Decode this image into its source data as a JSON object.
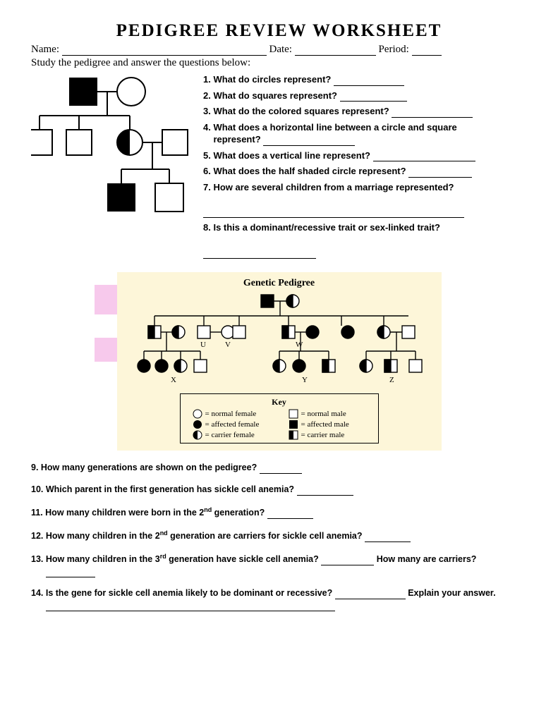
{
  "title": "PEDIGREE REVIEW WORKSHEET",
  "header": {
    "name": "Name:",
    "date": "Date:",
    "period": "Period:"
  },
  "instruction": "Study the pedigree and answer the questions below:",
  "questions1": [
    {
      "n": "1.",
      "t": "What do circles represent?",
      "bw": 100
    },
    {
      "n": "2.",
      "t": "What do squares represent?",
      "bw": 95
    },
    {
      "n": "3.",
      "t": "What do the colored squares represent?",
      "bw": 115
    },
    {
      "n": "4.",
      "t": "What does a horizontal line between a circle and square represent?",
      "bw": 130,
      "multi": true
    },
    {
      "n": "5.",
      "t": "What does a vertical line represent?",
      "bw": 145
    },
    {
      "n": "6.",
      "t": "What does the half shaded circle represent?",
      "bw": 90
    },
    {
      "n": "7.",
      "t": "How are several children from a marriage represented?",
      "bw": 370,
      "below": true
    },
    {
      "n": "8.",
      "t": "Is this a dominant/recessive trait or sex-linked trait?",
      "bw": 160,
      "below": true
    }
  ],
  "geneticTitle": "Genetic Pedigree",
  "labels": {
    "U": "U",
    "V": "V",
    "W": "W",
    "X": "X",
    "Y": "Y",
    "Z": "Z"
  },
  "keyTitle": "Key",
  "key": [
    {
      "sym": "circ-empty",
      "t": "= normal female"
    },
    {
      "sym": "sq-empty",
      "t": "= normal male"
    },
    {
      "sym": "circ-fill",
      "t": "= affected female"
    },
    {
      "sym": "sq-fill",
      "t": "= affected male"
    },
    {
      "sym": "circ-half",
      "t": "= carrier female"
    },
    {
      "sym": "sq-half",
      "t": "= carrier male"
    }
  ],
  "questions2": [
    {
      "t": "9. How many generations are shown on the pedigree?",
      "bw": 60
    },
    {
      "t": "10. Which parent in the first generation has sickle cell anemia?",
      "bw": 80
    },
    {
      "t": "11. How many children were born in the 2",
      "sup": "nd",
      "t2": " generation?",
      "bw": 65
    },
    {
      "t": "12. How many children in the 2",
      "sup": "nd",
      "t2": " generation are carriers for sickle cell anemia?",
      "bw": 65
    },
    {
      "t": "13. How many children in the 3",
      "sup": "rd",
      "t2": " generation have sickle cell anemia?",
      "bw": 75,
      "t3": " How many are carriers?",
      "bw2": 70,
      "nl": true
    },
    {
      "t": "14. Is the gene for sickle cell anemia likely to be dominant or recessive?",
      "bw": 100,
      "t3": " Explain your answer.",
      "bw2": 410,
      "nl": true
    }
  ]
}
